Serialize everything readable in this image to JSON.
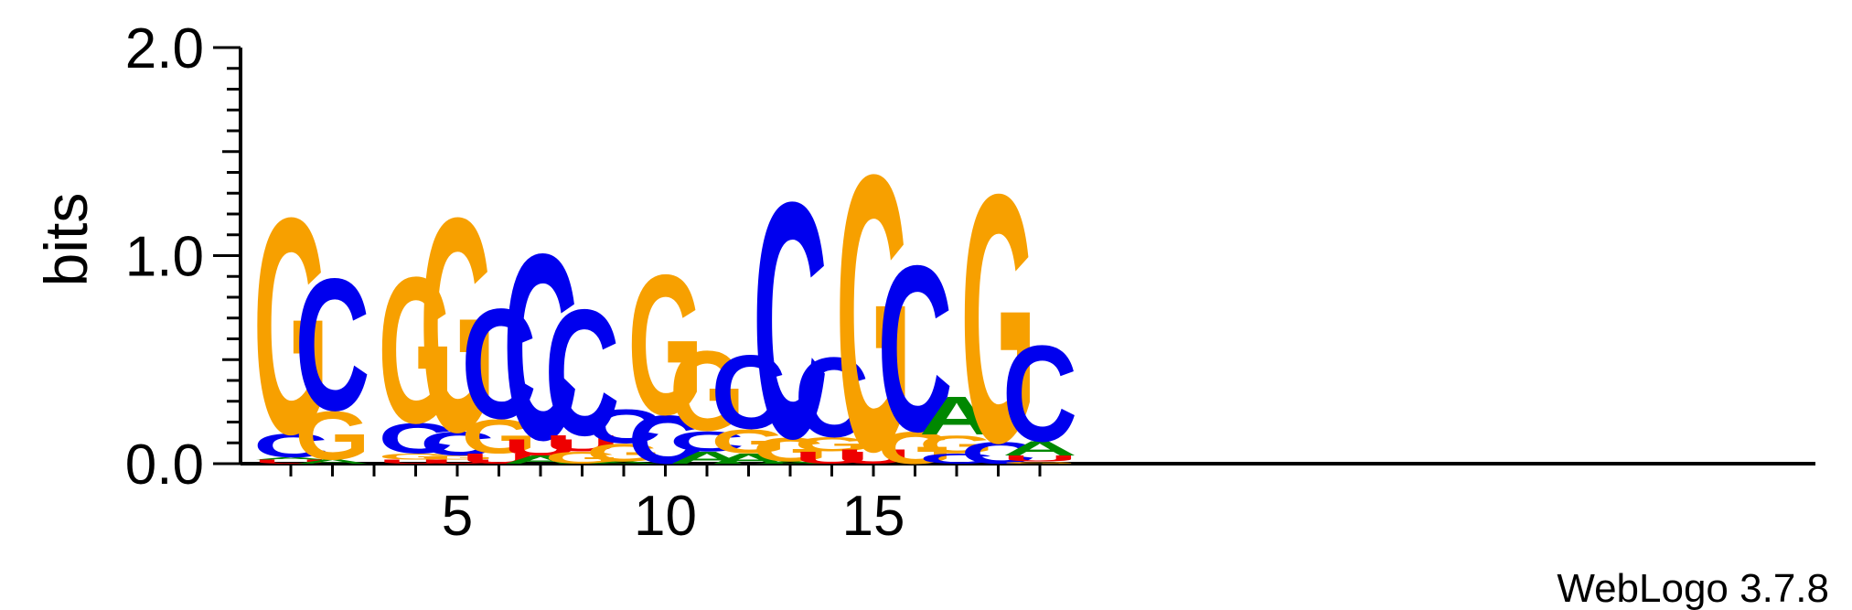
{
  "footer": {
    "credit": "WebLogo 3.7.8"
  },
  "colors": {
    "G": "#f7a000",
    "C": "#0000ee",
    "A": "#008800",
    "U": "#ee0000",
    "axis": "#000000"
  },
  "chart_data": {
    "type": "sequence-logo",
    "ylabel": "bits",
    "ylim": [
      0,
      2.0
    ],
    "y_ticks": [
      "0.0",
      "1.0",
      "2.0"
    ],
    "y_minor_step": 0.1,
    "x_range": [
      1,
      19
    ],
    "x_tick_labels": [
      "5",
      "10",
      "15"
    ],
    "positions": [
      {
        "pos": 1,
        "letters": [
          [
            "U",
            0.02
          ],
          [
            "A",
            0.01
          ],
          [
            "C",
            0.12
          ],
          [
            "G",
            1.08
          ]
        ]
      },
      {
        "pos": 2,
        "letters": [
          [
            "A",
            0.02
          ],
          [
            "G",
            0.24
          ],
          [
            "C",
            0.66
          ]
        ]
      },
      {
        "pos": 3,
        "letters": []
      },
      {
        "pos": 4,
        "letters": [
          [
            "U",
            0.02
          ],
          [
            "G",
            0.03
          ],
          [
            "C",
            0.15
          ],
          [
            "G",
            0.73
          ]
        ]
      },
      {
        "pos": 5,
        "letters": [
          [
            "U",
            0.02
          ],
          [
            "G",
            0.02
          ],
          [
            "C",
            0.12
          ],
          [
            "G",
            1.07
          ]
        ]
      },
      {
        "pos": 6,
        "letters": [
          [
            "U",
            0.05
          ],
          [
            "G",
            0.17
          ],
          [
            "C",
            0.55
          ]
        ]
      },
      {
        "pos": 7,
        "letters": [
          [
            "A",
            0.04
          ],
          [
            "U",
            0.08
          ],
          [
            "C",
            0.93
          ]
        ]
      },
      {
        "pos": 8,
        "letters": [
          [
            "G",
            0.06
          ],
          [
            "U",
            0.08
          ],
          [
            "C",
            0.63
          ]
        ]
      },
      {
        "pos": 9,
        "letters": [
          [
            "A",
            0.01
          ],
          [
            "G",
            0.09
          ],
          [
            "C",
            0.17
          ]
        ]
      },
      {
        "pos": 10,
        "letters": [
          [
            "C",
            0.24
          ],
          [
            "G",
            0.7
          ]
        ]
      },
      {
        "pos": 11,
        "letters": [
          [
            "A",
            0.06
          ],
          [
            "C",
            0.1
          ],
          [
            "G",
            0.4
          ]
        ]
      },
      {
        "pos": 12,
        "letters": [
          [
            "A",
            0.05
          ],
          [
            "G",
            0.12
          ],
          [
            "C",
            0.37
          ]
        ]
      },
      {
        "pos": 13,
        "letters": [
          [
            "A",
            0.01
          ],
          [
            "G",
            0.12
          ],
          [
            "C",
            1.18
          ]
        ]
      },
      {
        "pos": 14,
        "letters": [
          [
            "U",
            0.06
          ],
          [
            "G",
            0.07
          ],
          [
            "C",
            0.4
          ]
        ]
      },
      {
        "pos": 15,
        "letters": [
          [
            "U",
            0.07
          ],
          [
            "G",
            1.38
          ]
        ]
      },
      {
        "pos": 16,
        "letters": [
          [
            "G",
            0.16
          ],
          [
            "C",
            0.83
          ]
        ]
      },
      {
        "pos": 17,
        "letters": [
          [
            "C",
            0.05
          ],
          [
            "G",
            0.09
          ],
          [
            "A",
            0.19
          ]
        ]
      },
      {
        "pos": 18,
        "letters": [
          [
            "C",
            0.11
          ],
          [
            "G",
            1.24
          ]
        ]
      },
      {
        "pos": 19,
        "letters": [
          [
            "G",
            0.01
          ],
          [
            "U",
            0.03
          ],
          [
            "A",
            0.07
          ],
          [
            "C",
            0.48
          ]
        ]
      }
    ]
  }
}
